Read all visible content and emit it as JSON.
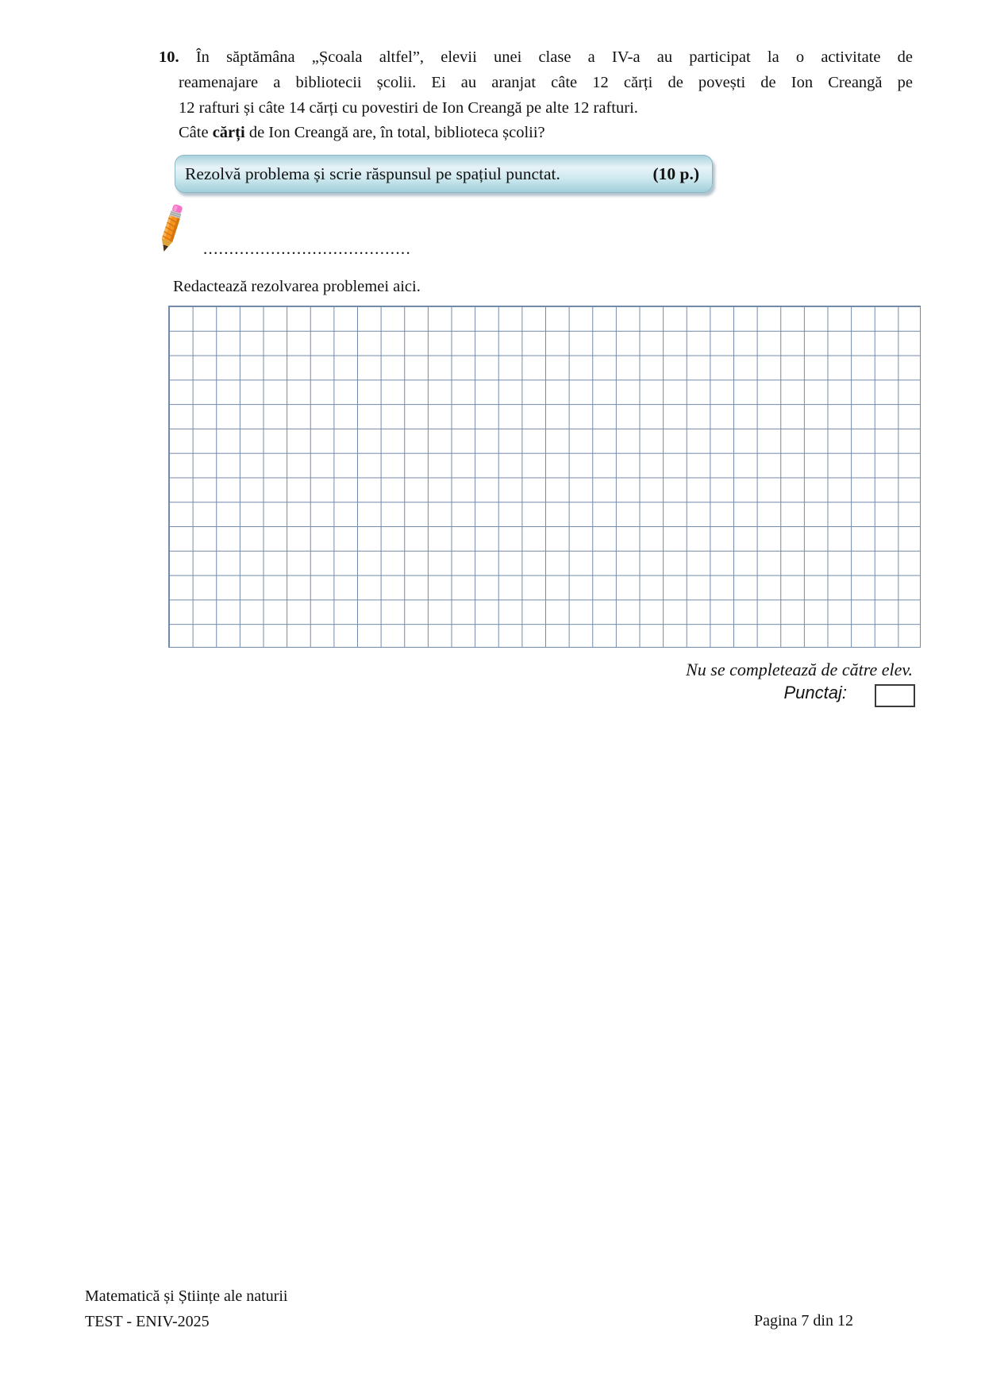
{
  "colors": {
    "text": "#121212",
    "grid_line": "#7389a9",
    "banner_border": "#8cb8c6",
    "banner_top": "#a8d2de",
    "banner_light": "#e7f3f7",
    "banner_mid": "#cfe9ef",
    "banner_bottom": "#a2cfdb",
    "pencil_body": "#f6921e",
    "pencil_stripe": "#d4760a",
    "pencil_eraser": "#f473c6",
    "pencil_ferrule": "#c8c8c8",
    "pencil_tip": "#e0a33c"
  },
  "problem": {
    "number": "10.",
    "lines": [
      {
        "justify": true,
        "first": true,
        "segments": [
          {
            "text": "10.",
            "bold": true
          },
          {
            "text": " În săptămâna „Școala altfel”, elevii unei clase a IV-a au participat la o activitate de",
            "bold": false
          }
        ]
      },
      {
        "justify": true,
        "first": false,
        "segments": [
          {
            "text": "reamenajare a bibliotecii școlii. Ei au aranjat câte 12 cărți de povești de Ion Creangă pe",
            "bold": false
          }
        ]
      },
      {
        "justify": false,
        "first": false,
        "segments": [
          {
            "text": "12 rafturi și câte 14 cărți cu povestiri de Ion Creangă pe alte 12 rafturi.",
            "bold": false
          }
        ]
      },
      {
        "justify": false,
        "first": false,
        "segments": [
          {
            "text": "Câte ",
            "bold": false
          },
          {
            "text": "cărți",
            "bold": true
          },
          {
            "text": " de Ion Creangă are, în total, biblioteca școlii?",
            "bold": false
          }
        ]
      }
    ]
  },
  "instruction_banner": {
    "text": "Rezolvă problema și scrie răspunsul pe spațiul punctat.",
    "points": "(10 p.)"
  },
  "answer_area": {
    "pencil_icon": "pencil-icon",
    "dotted_line": "........................................",
    "prompt": "Redactează rezolvarea problemei aici.",
    "grid": {
      "columns": 32,
      "rows": 14
    }
  },
  "scoring": {
    "note": "Nu se completează de către elev.",
    "label": "Punctaj:",
    "box_value": ""
  },
  "footer": {
    "subject": "Matematică și Științe ale naturii",
    "test": "TEST - ENIV-2025",
    "page": "Pagina 7 din 12"
  }
}
